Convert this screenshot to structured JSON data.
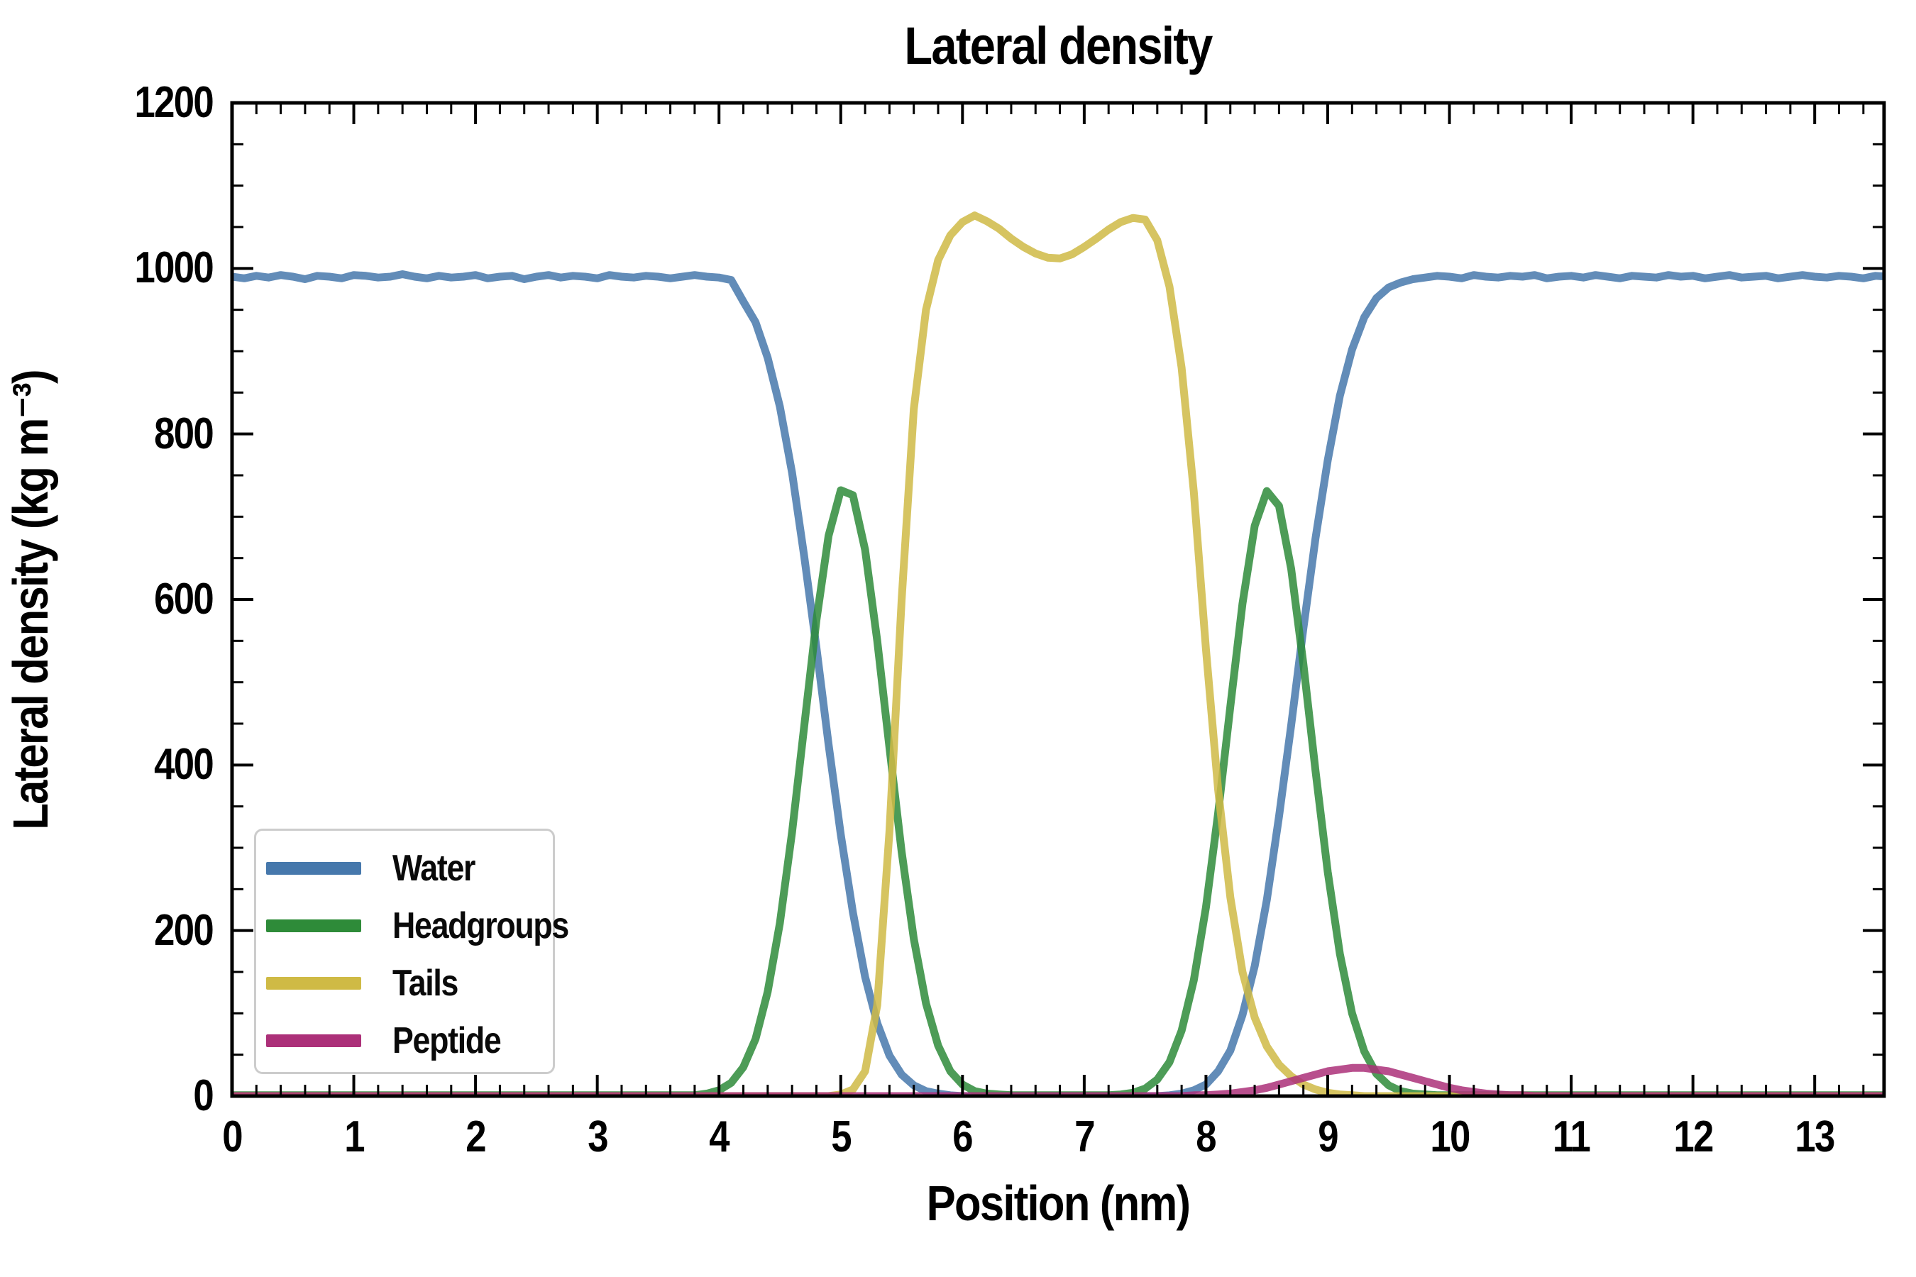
{
  "title": "Lateral density",
  "axes": {
    "xlabel": "Position (nm)",
    "ylabel": "Lateral density (kg m⁻³)",
    "xlim": [
      0,
      13.57
    ],
    "ylim": [
      0,
      1200
    ],
    "xticks": [
      0,
      1,
      2,
      3,
      4,
      5,
      6,
      7,
      8,
      9,
      10,
      11,
      12,
      13
    ],
    "yticks": [
      0,
      200,
      400,
      600,
      800,
      1000,
      1200
    ],
    "x_minor_step": 0.2,
    "y_minor_step": 50
  },
  "legend": {
    "position": "lower left",
    "items": [
      {
        "label": "Water",
        "color": "#4678ac"
      },
      {
        "label": "Headgroups",
        "color": "#2e8b39"
      },
      {
        "label": "Tails",
        "color": "#cfba45"
      },
      {
        "label": "Peptide",
        "color": "#ac3079"
      }
    ]
  },
  "chart_data": {
    "type": "line",
    "title": "Lateral density",
    "xlabel": "Position (nm)",
    "ylabel": "Lateral density (kg m⁻³)",
    "xlim": [
      0,
      13.57
    ],
    "ylim": [
      0,
      1200
    ],
    "grid": false,
    "legend_position": "lower left",
    "x_start": 0,
    "x_step": 0.1,
    "line_alpha": 0.85,
    "line_width": 11,
    "series": [
      {
        "name": "Water",
        "color": "#4678ac",
        "values": [
          990,
          988,
          991,
          989,
          992,
          990,
          987,
          991,
          990,
          988,
          992,
          991,
          989,
          990,
          993,
          990,
          988,
          991,
          989,
          990,
          992,
          988,
          990,
          991,
          987,
          990,
          992,
          989,
          991,
          990,
          988,
          992,
          990,
          989,
          991,
          990,
          988,
          990,
          992,
          990,
          989,
          986,
          960,
          935,
          892,
          833,
          753,
          652,
          542,
          425,
          316,
          222,
          144,
          88,
          49,
          26,
          13,
          6,
          3,
          1,
          0,
          0,
          0,
          0,
          0,
          0,
          0,
          0,
          0,
          0,
          0,
          0,
          0,
          0,
          0,
          0,
          0,
          1,
          3,
          7,
          14,
          30,
          55,
          98,
          157,
          237,
          338,
          448,
          565,
          674,
          768,
          846,
          902,
          941,
          964,
          977,
          983,
          987,
          989,
          991,
          990,
          988,
          992,
          990,
          989,
          991,
          990,
          992,
          988,
          990,
          991,
          989,
          992,
          990,
          988,
          991,
          990,
          989,
          992,
          990,
          991,
          988,
          990,
          992,
          989,
          990,
          991,
          988,
          990,
          992,
          990,
          989,
          991,
          990,
          988,
          991,
          990
        ]
      },
      {
        "name": "Headgroups",
        "color": "#2e8b39",
        "values": [
          1,
          1,
          1,
          1,
          1,
          1,
          1,
          1,
          1,
          1,
          1,
          1,
          1,
          1,
          1,
          1,
          1,
          1,
          1,
          1,
          1,
          1,
          1,
          1,
          1,
          1,
          1,
          1,
          1,
          1,
          1,
          1,
          1,
          1,
          1,
          1,
          1,
          1,
          1,
          3,
          7,
          16,
          35,
          69,
          126,
          209,
          319,
          447,
          575,
          677,
          732,
          726,
          660,
          550,
          421,
          295,
          190,
          112,
          61,
          30,
          14,
          6,
          3,
          2,
          1,
          1,
          1,
          1,
          1,
          1,
          1,
          1,
          1,
          2,
          4,
          9,
          20,
          41,
          79,
          140,
          228,
          342,
          471,
          595,
          689,
          731,
          713,
          637,
          522,
          393,
          271,
          172,
          100,
          54,
          27,
          13,
          6,
          3,
          2,
          1,
          1,
          1,
          1,
          1,
          1,
          1,
          1,
          1,
          1,
          1,
          1,
          1,
          1,
          1,
          1,
          1,
          1,
          1,
          1,
          1,
          1,
          1,
          1,
          1,
          1,
          1,
          1,
          1,
          1,
          1,
          1,
          1,
          1,
          1,
          1,
          1,
          1
        ]
      },
      {
        "name": "Tails",
        "color": "#cfba45",
        "values": [
          0,
          0,
          0,
          0,
          0,
          0,
          0,
          0,
          0,
          0,
          0,
          0,
          0,
          0,
          0,
          0,
          0,
          0,
          0,
          0,
          0,
          0,
          0,
          0,
          0,
          0,
          0,
          0,
          0,
          0,
          0,
          0,
          0,
          0,
          0,
          0,
          0,
          0,
          0,
          0,
          0,
          0,
          0,
          0,
          0,
          0,
          0,
          0,
          0,
          0,
          2,
          8,
          30,
          110,
          320,
          600,
          830,
          950,
          1010,
          1040,
          1056,
          1064,
          1057,
          1048,
          1036,
          1026,
          1018,
          1013,
          1012,
          1017,
          1026,
          1036,
          1047,
          1056,
          1061,
          1059,
          1034,
          978,
          880,
          730,
          540,
          370,
          240,
          150,
          95,
          60,
          38,
          24,
          14,
          8,
          4,
          2,
          1,
          0,
          0,
          0,
          0,
          0,
          0,
          0,
          0,
          0,
          0,
          0,
          0,
          0,
          0,
          0,
          0,
          0,
          0,
          0,
          0,
          0,
          0,
          0,
          0,
          0,
          0,
          0,
          0,
          0,
          0,
          0,
          0,
          0,
          0,
          0,
          0,
          0,
          0,
          0,
          0,
          0,
          0,
          0,
          0
        ]
      },
      {
        "name": "Peptide",
        "color": "#ac3079",
        "values": [
          0,
          0,
          0,
          0,
          0,
          0,
          0,
          0,
          0,
          0,
          0,
          0,
          0,
          0,
          0,
          0,
          0,
          0,
          0,
          0,
          0,
          0,
          0,
          0,
          0,
          0,
          0,
          0,
          0,
          0,
          0,
          0,
          0,
          0,
          0,
          0,
          0,
          0,
          0,
          0,
          0,
          0,
          0,
          0,
          0,
          0,
          0,
          0,
          0,
          0,
          0,
          0,
          0,
          0,
          0,
          0,
          0,
          0,
          0,
          0,
          0,
          0,
          0,
          0,
          0,
          0,
          0,
          0,
          0,
          0,
          0,
          0,
          0,
          0,
          0,
          0,
          0,
          0,
          0,
          1,
          1,
          2,
          3,
          5,
          7,
          10,
          14,
          18,
          22,
          26,
          30,
          32,
          34,
          34,
          32,
          30,
          26,
          22,
          18,
          14,
          10,
          7,
          5,
          3,
          2,
          1,
          1,
          0,
          0,
          0,
          0,
          0,
          0,
          0,
          0,
          0,
          0,
          0,
          0,
          0,
          0,
          0,
          0,
          0,
          0,
          0,
          0,
          0,
          0,
          0,
          0,
          0,
          0,
          0,
          0,
          0,
          0
        ]
      }
    ]
  }
}
